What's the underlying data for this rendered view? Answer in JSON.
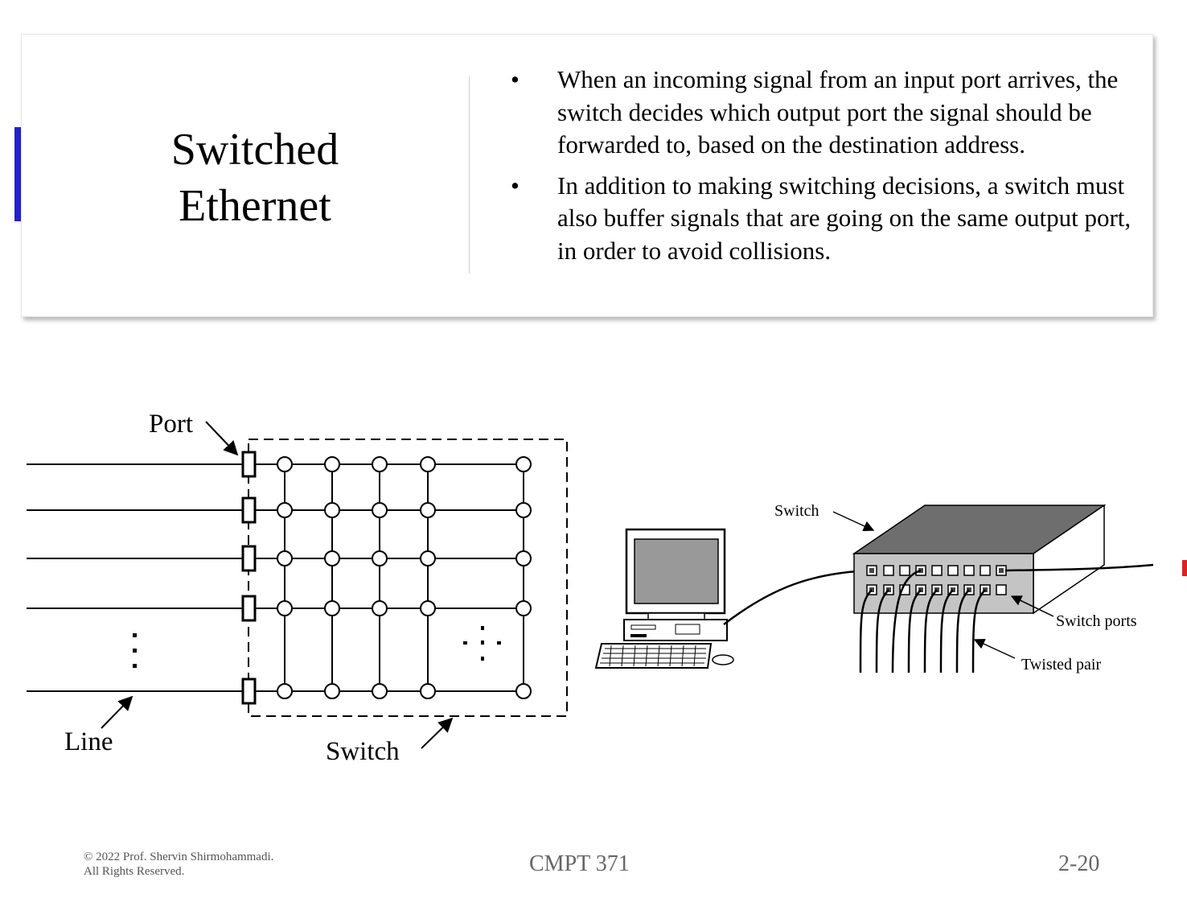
{
  "slide": {
    "title_line1": "Switched",
    "title_line2": "Ethernet",
    "bullets": [
      "When an incoming signal from an input port arrives, the switch decides which output port the signal should be forwarded to, based on the destination address.",
      "In addition to making switching decisions, a switch must also buffer signals that are going on the same output port, in order to avoid collisions."
    ],
    "bullet_symbol": "•"
  },
  "diagram_left": {
    "port_label": "Port",
    "line_label": "Line",
    "switch_label": "Switch"
  },
  "diagram_right": {
    "switch_label": "Switch",
    "switch_ports_label": "Switch  ports",
    "twisted_pair_label": "Twisted  pair"
  },
  "footer": {
    "copyright_line1": "© 2022 Prof. Shervin Shirmohammadi.",
    "copyright_line2": "All Rights Reserved.",
    "course": "CMPT 371",
    "page": "2-20"
  },
  "colors": {
    "accent_left": "#2222cc",
    "accent_right": "#dd2222",
    "switch_top": "#6e6e6e",
    "switch_front": "#c4c4c4"
  }
}
